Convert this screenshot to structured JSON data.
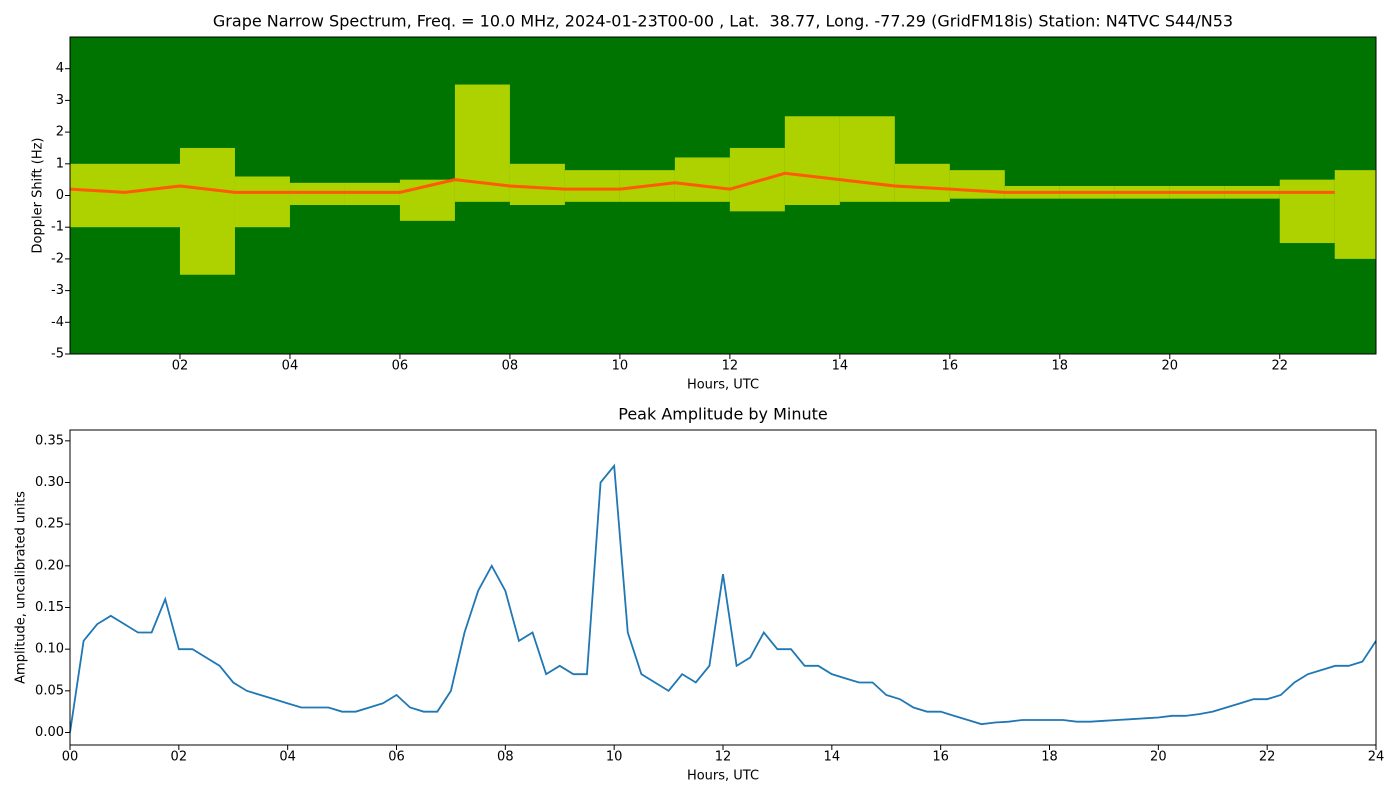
{
  "chart_data": [
    {
      "type": "spectrogram",
      "title": "Grape Narrow Spectrum, Freq. = 10.0 MHz, 2024-01-23T00-00 , Lat.  38.77, Long. -77.29 (GridFM18is) Station: N4TVC S44/N53",
      "xlabel": "Hours, UTC",
      "ylabel": "Doppler Shift (Hz)",
      "xlim": [
        0,
        23.75
      ],
      "ylim": [
        -5,
        5
      ],
      "xticks": [
        {
          "value": 2,
          "label": "02"
        },
        {
          "value": 4,
          "label": "04"
        },
        {
          "value": 6,
          "label": "06"
        },
        {
          "value": 8,
          "label": "08"
        },
        {
          "value": 10,
          "label": "10"
        },
        {
          "value": 12,
          "label": "12"
        },
        {
          "value": 14,
          "label": "14"
        },
        {
          "value": 16,
          "label": "16"
        },
        {
          "value": 18,
          "label": "18"
        },
        {
          "value": 20,
          "label": "20"
        },
        {
          "value": 22,
          "label": "22"
        }
      ],
      "yticks": [
        -5,
        -4,
        -3,
        -2,
        -1,
        0,
        1,
        2,
        3,
        4
      ],
      "background_color": "#007400",
      "band_color": "#e8f000",
      "center_color": "#ff5a00",
      "x": [
        0,
        1,
        2,
        3,
        4,
        5,
        6,
        7,
        8,
        9,
        10,
        11,
        12,
        13,
        14,
        15,
        16,
        17,
        18,
        19,
        20,
        21,
        22,
        23
      ],
      "center": [
        0.2,
        0.1,
        0.3,
        0.1,
        0.1,
        0.1,
        0.1,
        0.5,
        0.3,
        0.2,
        0.2,
        0.4,
        0.2,
        0.7,
        0.5,
        0.3,
        0.2,
        0.1,
        0.1,
        0.1,
        0.1,
        0.1,
        0.1,
        0.1
      ],
      "upper": [
        1.0,
        1.0,
        1.5,
        0.6,
        0.4,
        0.4,
        0.5,
        3.5,
        1.0,
        0.8,
        0.8,
        1.2,
        1.5,
        2.5,
        2.5,
        1.0,
        0.8,
        0.3,
        0.3,
        0.3,
        0.3,
        0.3,
        0.5,
        0.8
      ],
      "lower": [
        -1.0,
        -1.0,
        -2.5,
        -1.0,
        -0.3,
        -0.3,
        -0.8,
        -0.2,
        -0.3,
        -0.2,
        -0.2,
        -0.2,
        -0.5,
        -0.3,
        -0.2,
        -0.2,
        -0.1,
        -0.1,
        -0.1,
        -0.1,
        -0.1,
        -0.1,
        -1.5,
        -2.0
      ]
    },
    {
      "type": "line",
      "title": "Peak Amplitude by Minute",
      "xlabel": "Hours, UTC",
      "ylabel": "Amplitude, uncalibrated units",
      "xlim": [
        0,
        24
      ],
      "ylim": [
        -0.015,
        0.363
      ],
      "xticks": [
        {
          "value": 0,
          "label": "00"
        },
        {
          "value": 2,
          "label": "02"
        },
        {
          "value": 4,
          "label": "04"
        },
        {
          "value": 6,
          "label": "06"
        },
        {
          "value": 8,
          "label": "08"
        },
        {
          "value": 10,
          "label": "10"
        },
        {
          "value": 12,
          "label": "12"
        },
        {
          "value": 14,
          "label": "14"
        },
        {
          "value": 16,
          "label": "16"
        },
        {
          "value": 18,
          "label": "18"
        },
        {
          "value": 20,
          "label": "20"
        },
        {
          "value": 22,
          "label": "22"
        },
        {
          "value": 24,
          "label": "24"
        }
      ],
      "yticks": [
        {
          "value": 0,
          "label": "0.00"
        },
        {
          "value": 0.05,
          "label": "0.05"
        },
        {
          "value": 0.1,
          "label": "0.10"
        },
        {
          "value": 0.15,
          "label": "0.15"
        },
        {
          "value": 0.2,
          "label": "0.20"
        },
        {
          "value": 0.25,
          "label": "0.25"
        },
        {
          "value": 0.3,
          "label": "0.30"
        },
        {
          "value": 0.35,
          "label": "0.35"
        }
      ],
      "color": "#1f77b4",
      "x": [
        0,
        0.25,
        0.5,
        0.75,
        1,
        1.25,
        1.5,
        1.75,
        2,
        2.25,
        2.5,
        2.75,
        3,
        3.25,
        3.5,
        3.75,
        4,
        4.25,
        4.5,
        4.75,
        5,
        5.25,
        5.5,
        5.75,
        6,
        6.25,
        6.5,
        6.75,
        7,
        7.25,
        7.5,
        7.75,
        8,
        8.25,
        8.5,
        8.75,
        9,
        9.25,
        9.5,
        9.75,
        10,
        10.25,
        10.5,
        10.75,
        11,
        11.25,
        11.5,
        11.75,
        12,
        12.25,
        12.5,
        12.75,
        13,
        13.25,
        13.5,
        13.75,
        14,
        14.25,
        14.5,
        14.75,
        15,
        15.25,
        15.5,
        15.75,
        16,
        16.25,
        16.5,
        16.75,
        17,
        17.25,
        17.5,
        17.75,
        18,
        18.25,
        18.5,
        18.75,
        19,
        19.25,
        19.5,
        19.75,
        20,
        20.25,
        20.5,
        20.75,
        21,
        21.25,
        21.5,
        21.75,
        22,
        22.25,
        22.5,
        22.75,
        23,
        23.25,
        23.5,
        23.75,
        24
      ],
      "values": [
        0.0,
        0.11,
        0.13,
        0.14,
        0.13,
        0.12,
        0.12,
        0.16,
        0.1,
        0.1,
        0.09,
        0.08,
        0.06,
        0.05,
        0.045,
        0.04,
        0.035,
        0.03,
        0.03,
        0.03,
        0.025,
        0.025,
        0.03,
        0.035,
        0.045,
        0.03,
        0.025,
        0.025,
        0.05,
        0.12,
        0.17,
        0.2,
        0.17,
        0.11,
        0.12,
        0.07,
        0.08,
        0.07,
        0.07,
        0.3,
        0.32,
        0.12,
        0.07,
        0.06,
        0.05,
        0.07,
        0.06,
        0.08,
        0.19,
        0.08,
        0.09,
        0.12,
        0.1,
        0.1,
        0.08,
        0.08,
        0.07,
        0.065,
        0.06,
        0.06,
        0.045,
        0.04,
        0.03,
        0.025,
        0.025,
        0.02,
        0.015,
        0.01,
        0.012,
        0.013,
        0.015,
        0.015,
        0.015,
        0.015,
        0.013,
        0.013,
        0.014,
        0.015,
        0.016,
        0.017,
        0.018,
        0.02,
        0.02,
        0.022,
        0.025,
        0.03,
        0.035,
        0.04,
        0.04,
        0.045,
        0.06,
        0.07,
        0.075,
        0.08,
        0.08,
        0.085,
        0.11
      ]
    }
  ]
}
